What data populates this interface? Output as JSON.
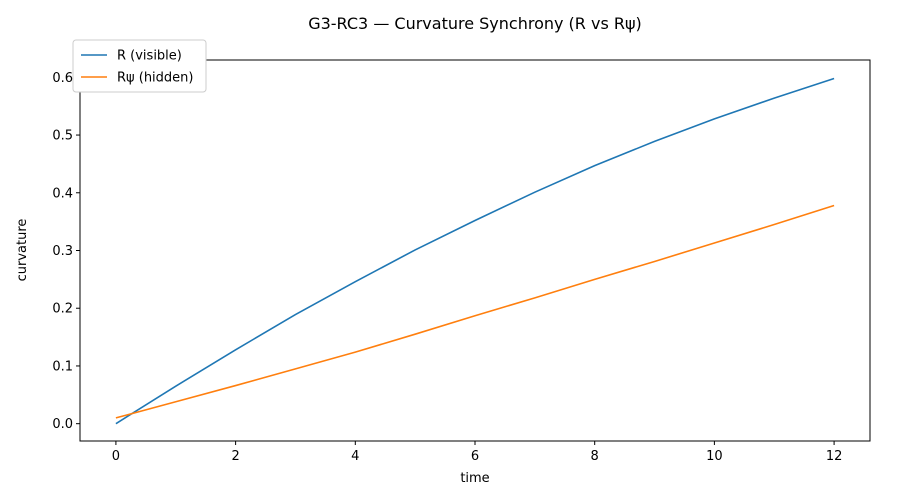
{
  "chart_data": {
    "type": "line",
    "title": "G3-RC3 — Curvature Synchrony (R vs Rψ)",
    "xlabel": "time",
    "ylabel": "curvature",
    "xlim": [
      -0.6,
      12.6
    ],
    "ylim": [
      -0.03,
      0.63
    ],
    "xticks": [
      0,
      2,
      4,
      6,
      8,
      10,
      12
    ],
    "yticks": [
      0.0,
      0.1,
      0.2,
      0.3,
      0.4,
      0.5,
      0.6
    ],
    "ytick_labels": [
      "0.0",
      "0.1",
      "0.2",
      "0.3",
      "0.4",
      "0.5",
      "0.6"
    ],
    "grid": false,
    "legend": "top-left",
    "x": [
      0,
      1,
      2,
      3,
      4,
      5,
      6,
      7,
      8,
      9,
      10,
      11,
      12
    ],
    "series": [
      {
        "name": "R (visible)",
        "color": "#1f77b4",
        "values": [
          0.0,
          0.065,
          0.128,
          0.189,
          0.246,
          0.301,
          0.352,
          0.401,
          0.447,
          0.489,
          0.528,
          0.564,
          0.598
        ]
      },
      {
        "name": "Rψ (hidden)",
        "color": "#ff7f0e",
        "values": [
          0.01,
          0.038,
          0.066,
          0.095,
          0.124,
          0.155,
          0.187,
          0.218,
          0.25,
          0.281,
          0.313,
          0.345,
          0.378
        ]
      }
    ]
  }
}
